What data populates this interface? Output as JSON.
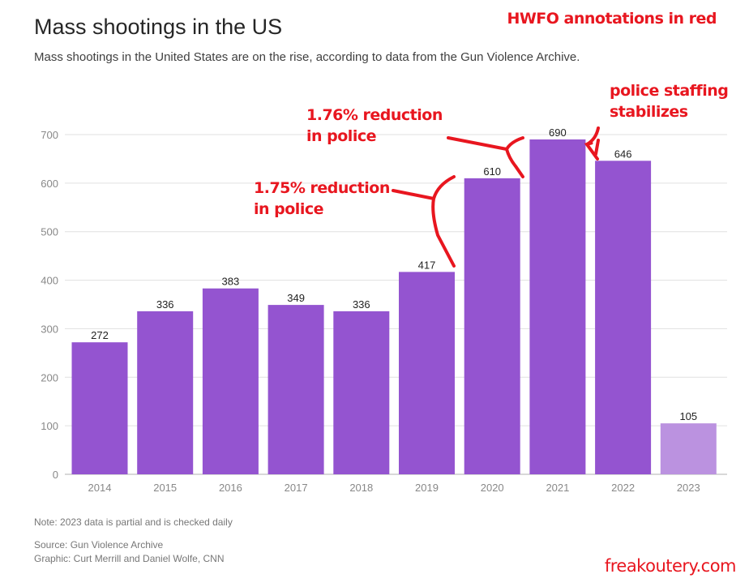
{
  "header": {
    "title": "Mass shootings in the US",
    "subtitle": "Mass shootings in the United States are on the rise, according to data from the Gun Violence Archive."
  },
  "chart_data": {
    "type": "bar",
    "title": "Mass shootings in the US",
    "categories": [
      "2014",
      "2015",
      "2016",
      "2017",
      "2018",
      "2019",
      "2020",
      "2021",
      "2022",
      "2023"
    ],
    "values": [
      272,
      336,
      383,
      349,
      336,
      417,
      610,
      690,
      646,
      105
    ],
    "partial": [
      false,
      false,
      false,
      false,
      false,
      false,
      false,
      false,
      false,
      true
    ],
    "xlabel": "",
    "ylabel": "",
    "ylim": [
      0,
      700
    ],
    "yticks": [
      0,
      100,
      200,
      300,
      400,
      500,
      600,
      700
    ],
    "grid": true,
    "colors": {
      "bar": "#9454d0",
      "partial": "#bb92e0",
      "annotation": "#e8161f"
    }
  },
  "annotations": {
    "header": "HWFO annotations in red",
    "a2019_line1": "1.75% reduction",
    "a2019_line2": "in police",
    "a2020_line1": "1.76% reduction",
    "a2020_line2": "in police",
    "a2022_line1": "police staffing",
    "a2022_line2": "stabilizes"
  },
  "footer": {
    "note": "Note: 2023 data is partial and is checked daily",
    "source": "Source: Gun Violence Archive",
    "graphic": "Graphic: Curt Merrill and Daniel Wolfe, CNN",
    "watermark": "freakoutery.com"
  }
}
